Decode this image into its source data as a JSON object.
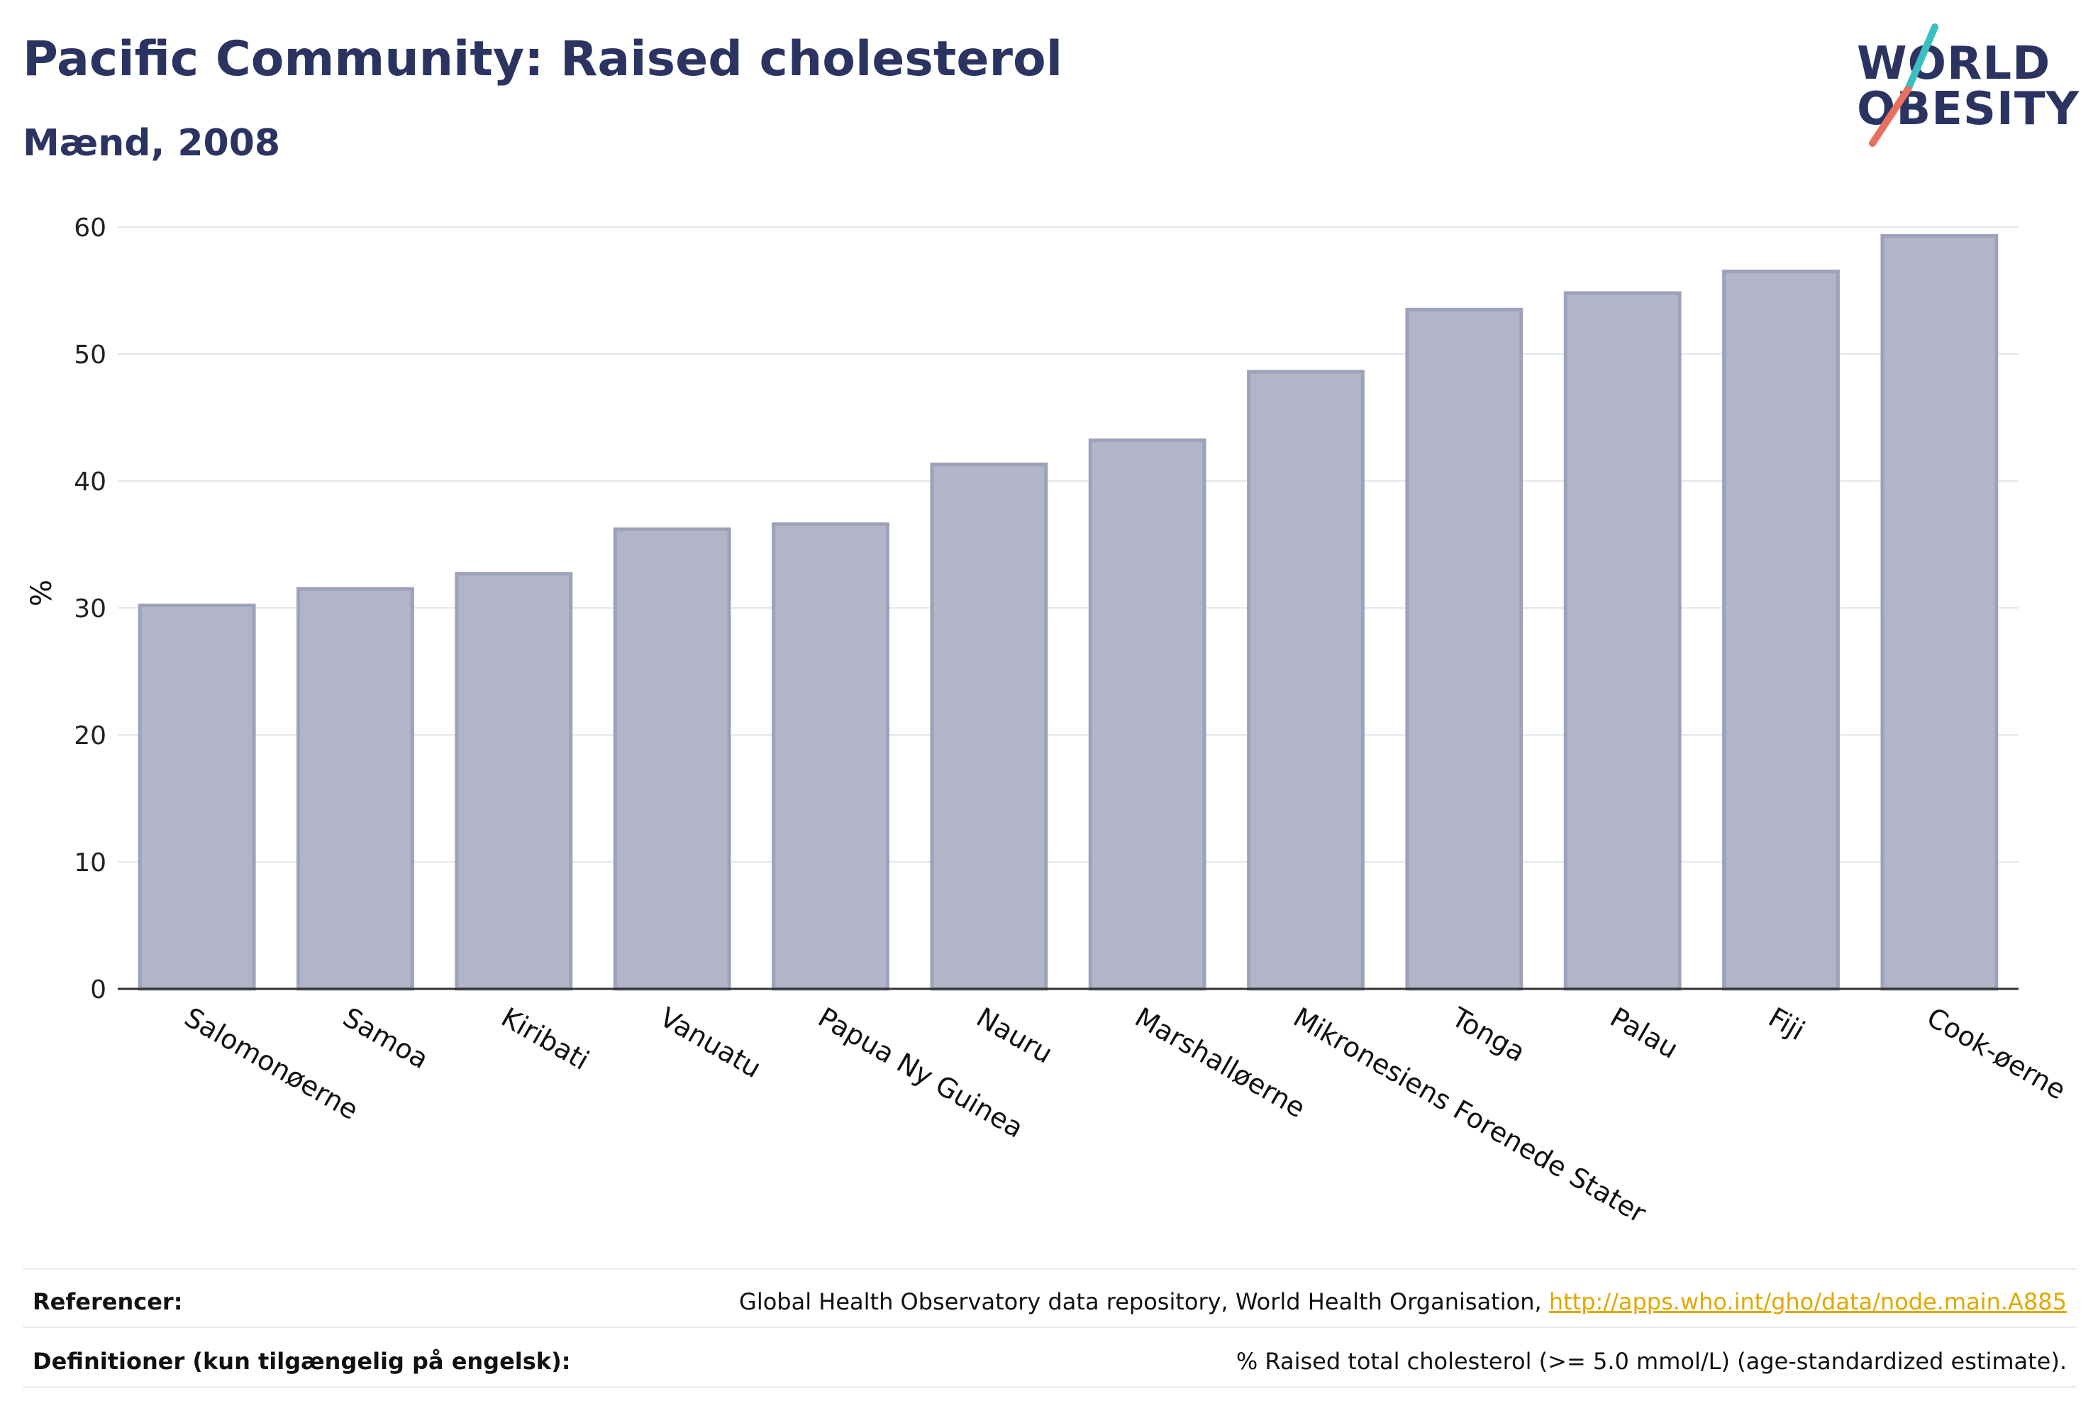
{
  "header": {
    "title": "Pacific Community: Raised cholesterol",
    "subtitle": "Mænd, 2008"
  },
  "logo": {
    "line1": "WORLD",
    "line2": "OBESITY",
    "colors": {
      "text": "#2b3461",
      "slash_top": "#3bbfbf",
      "slash_bottom": "#e8705f"
    }
  },
  "chart_data": {
    "type": "bar",
    "ylabel": "%",
    "ylim": [
      0,
      60
    ],
    "yticks": [
      0,
      10,
      20,
      30,
      40,
      50,
      60
    ],
    "grid": true,
    "bar_color": "#b1b5c7",
    "bar_edge_color": "#9da2ba",
    "categories": [
      "Salomonøerne",
      "Samoa",
      "Kiribati",
      "Vanuatu",
      "Papua Ny Guinea",
      "Nauru",
      "Marshalløerne",
      "Mikronesiens Forenede Stater",
      "Tonga",
      "Palau",
      "Fiji",
      "Cook-øerne"
    ],
    "values": [
      30.2,
      31.5,
      32.7,
      36.2,
      36.6,
      41.3,
      43.2,
      48.6,
      53.5,
      54.8,
      56.5,
      59.3
    ]
  },
  "footer": {
    "references_label": "Referencer:",
    "references_text": "Global Health Observatory data repository, World Health Organisation, ",
    "references_link": "http://apps.who.int/gho/data/node.main.A885",
    "definitions_label": "Definitioner (kun tilgængelig på engelsk):",
    "definitions_text": "% Raised total cholesterol (>= 5.0 mmol/L) (age-standardized estimate)."
  }
}
